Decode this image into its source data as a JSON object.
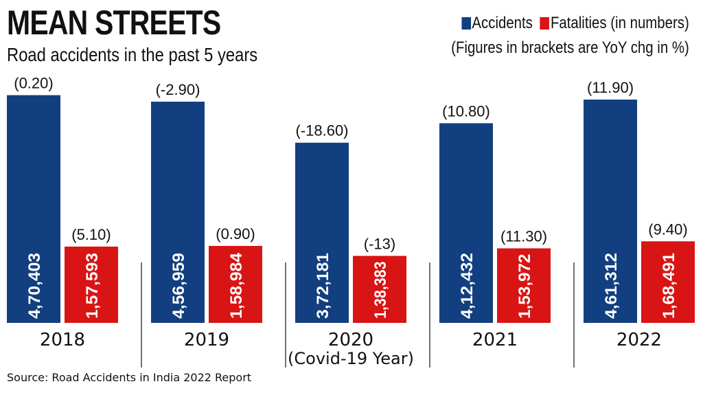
{
  "chart_data": {
    "type": "bar",
    "title": "MEAN STREETS",
    "subtitle": "Road accidents in the past 5 years",
    "categories": [
      "2018",
      "2019",
      "2020",
      "2021",
      "2022"
    ],
    "category_notes": [
      "",
      "",
      "(Covid-19 Year)",
      "",
      ""
    ],
    "series": [
      {
        "name": "Accidents",
        "color": "#123f80",
        "values": [
          470403,
          456959,
          372181,
          412432,
          461312
        ],
        "value_labels": [
          "4,70,403",
          "4,56,959",
          "3,72,181",
          "4,12,432",
          "4,61,312"
        ],
        "yoy_labels": [
          "(0.20)",
          "(-2.90)",
          "(-18.60)",
          "(10.80)",
          "(11.90)"
        ]
      },
      {
        "name": "Fatalities",
        "color": "#d91414",
        "values": [
          157593,
          158984,
          138383,
          153972,
          168491
        ],
        "value_labels": [
          "1,57,593",
          "1,58,984",
          "1,38,383",
          "1,53,972",
          "1,68,491"
        ],
        "yoy_labels": [
          "(5.10)",
          "(0.90)",
          "(-13)",
          "(11.30)",
          "(9.40)"
        ]
      }
    ],
    "legend": {
      "accidents": "Accidents",
      "fatalities": "Fatalities (in numbers)",
      "note": "(Figures in brackets are YoY chg in %)",
      "placement": "top-right"
    },
    "ylim": [
      0,
      667000
    ],
    "grid": false,
    "source": "Source: Road Accidents in India 2022 Report"
  }
}
